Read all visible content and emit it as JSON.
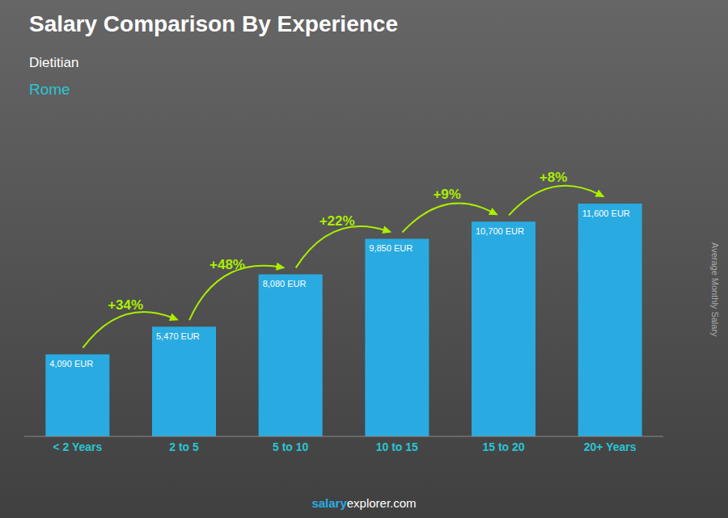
{
  "chart_data": {
    "type": "bar",
    "title": "Salary Comparison By Experience",
    "subtitle": [
      "Dietitian",
      "Rome"
    ],
    "categories": [
      "< 2 Years",
      "2 to 5",
      "5 to 10",
      "10 to 15",
      "15 to 20",
      "20+ Years"
    ],
    "values": [
      4090,
      5470,
      8080,
      9850,
      10700,
      11600
    ],
    "value_labels": [
      "4,090 EUR",
      "5,470 EUR",
      "8,080 EUR",
      "9,850 EUR",
      "10,700 EUR",
      "11,600 EUR"
    ],
    "data_labels": true,
    "color": "#29ABE2",
    "ylim": [
      0,
      14500
    ],
    "ylabel": "Average Monthly Salary",
    "annotations": [
      "+34%",
      "+48%",
      "+22%",
      "+9%",
      "+8%",
      "salary",
      "explorer.com"
    ],
    "grid": false,
    "tick_labels": "x"
  }
}
